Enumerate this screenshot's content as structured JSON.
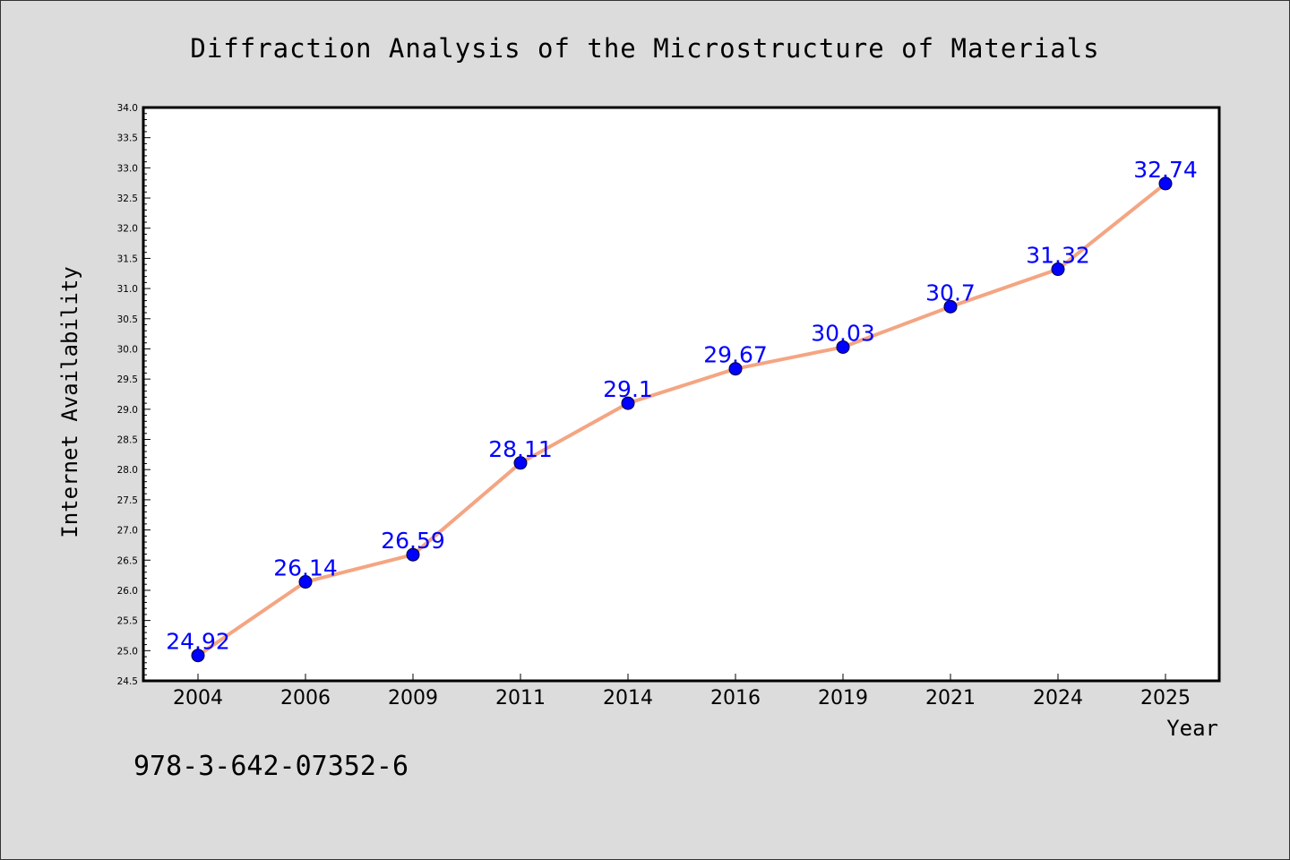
{
  "chart_data": {
    "type": "line",
    "title": "Diffraction Analysis of the Microstructure of Materials",
    "xlabel": "Year",
    "ylabel": "Internet Availability",
    "categories": [
      "2004",
      "2006",
      "2009",
      "2011",
      "2014",
      "2016",
      "2019",
      "2021",
      "2024",
      "2025"
    ],
    "series": [
      {
        "values": [
          24.92,
          26.14,
          26.59,
          28.11,
          29.1,
          29.67,
          30.03,
          30.7,
          31.32,
          32.74
        ],
        "data_labels": [
          "24.92",
          "26.14",
          "26.59",
          "28.11",
          "29.1",
          "29.67",
          "30.03",
          "30.7",
          "31.32",
          "32.74"
        ]
      }
    ],
    "ylim": [
      24.5,
      34.0
    ],
    "yticks": [
      "24.5",
      "25.0",
      "25.5",
      "26.0",
      "26.5",
      "27.0",
      "27.5",
      "28.0",
      "28.5",
      "29.0",
      "29.5",
      "30.0",
      "30.5",
      "31.0",
      "31.5",
      "32.0",
      "32.5",
      "33.0",
      "33.5",
      "34.0"
    ],
    "grid": false,
    "colors": {
      "line": "#f4a582",
      "marker": "#0000ff",
      "data_label": "#0000ff",
      "background": "#dcdcdc",
      "plot_background": "#ffffff"
    }
  },
  "footer": {
    "text": "978-3-642-07352-6"
  }
}
